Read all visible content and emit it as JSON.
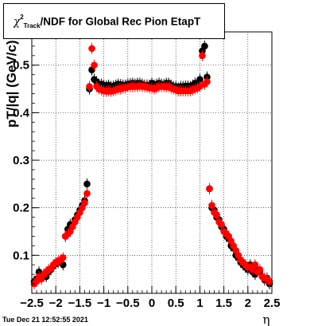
{
  "timestamp": "Tue Dec 21 12:52:55 2021",
  "chart_data": {
    "type": "scatter",
    "title": {
      "symbol": "χ",
      "sup": "2",
      "sub": "Track",
      "rest": "/NDF for Global Rec Pion EtapT"
    },
    "xlabel": "η",
    "ylabel": "pT/|q| (GeV/c)",
    "xlim": [
      -2.5,
      2.5
    ],
    "ylim": [
      0.02,
      0.57
    ],
    "x_ticks": [
      -2.5,
      -2,
      -1.5,
      -1,
      -0.5,
      0,
      0.5,
      1,
      1.5,
      2,
      2.5
    ],
    "x_tick_labels": [
      "−2.5",
      "−2",
      "−1.5",
      "−1",
      "−0.5",
      "0",
      "0.5",
      "1",
      "1.5",
      "2",
      "2.5"
    ],
    "y_ticks": [
      0.1,
      0.2,
      0.3,
      0.4,
      0.5
    ],
    "y_tick_labels": [
      "0.1",
      "0.2",
      "0.3",
      "0.4",
      "0.5"
    ],
    "grid": true,
    "series": [
      {
        "color": "#000000",
        "x": [
          -2.45,
          -2.4,
          -2.35,
          -2.3,
          -2.25,
          -2.2,
          -2.15,
          -2.1,
          -2.05,
          -2.0,
          -1.95,
          -1.9,
          -1.85,
          -1.8,
          -1.75,
          -1.7,
          -1.65,
          -1.6,
          -1.55,
          -1.5,
          -1.45,
          -1.4,
          -1.35,
          -1.3,
          -1.25,
          -1.2,
          -1.15,
          -1.1,
          -1.05,
          -1.0,
          -0.95,
          -0.9,
          -0.85,
          -0.8,
          -0.75,
          -0.7,
          -0.65,
          -0.6,
          -0.55,
          -0.5,
          -0.45,
          -0.4,
          -0.35,
          -0.3,
          -0.25,
          -0.2,
          -0.15,
          -0.1,
          -0.05,
          0.0,
          0.05,
          0.1,
          0.15,
          0.2,
          0.25,
          0.3,
          0.35,
          0.4,
          0.45,
          0.5,
          0.55,
          0.6,
          0.65,
          0.7,
          0.75,
          0.8,
          0.85,
          0.9,
          0.95,
          1.0,
          1.05,
          1.1,
          1.15,
          1.2,
          1.25,
          1.3,
          1.35,
          1.4,
          1.45,
          1.5,
          1.55,
          1.6,
          1.65,
          1.7,
          1.75,
          1.8,
          1.85,
          1.9,
          1.95,
          2.0,
          2.05,
          2.1,
          2.15,
          2.2,
          2.25,
          2.3,
          2.35,
          2.4,
          2.45
        ],
        "y": [
          0.045,
          0.05,
          0.065,
          0.058,
          0.06,
          0.055,
          0.065,
          0.07,
          0.078,
          0.082,
          0.085,
          0.09,
          0.08,
          0.14,
          0.155,
          0.165,
          0.16,
          0.175,
          0.185,
          0.195,
          0.205,
          0.215,
          0.25,
          0.45,
          0.49,
          0.47,
          0.465,
          0.46,
          0.46,
          0.458,
          0.456,
          0.458,
          0.455,
          0.456,
          0.458,
          0.46,
          0.459,
          0.458,
          0.458,
          0.46,
          0.461,
          0.462,
          0.46,
          0.462,
          0.462,
          0.46,
          0.458,
          0.458,
          0.458,
          0.462,
          0.458,
          0.46,
          0.462,
          0.46,
          0.459,
          0.462,
          0.462,
          0.458,
          0.455,
          0.455,
          0.452,
          0.455,
          0.455,
          0.456,
          0.456,
          0.455,
          0.458,
          0.462,
          0.46,
          0.47,
          0.53,
          0.54,
          0.475,
          0.24,
          0.2,
          0.195,
          0.18,
          0.175,
          0.16,
          0.155,
          0.14,
          0.135,
          0.12,
          0.115,
          0.1,
          0.095,
          0.085,
          0.08,
          0.075,
          0.07,
          0.08,
          0.065,
          0.06,
          0.07,
          0.065,
          0.055,
          0.048,
          0.052,
          0.04
        ]
      },
      {
        "color": "#ff0000",
        "x": [
          -2.45,
          -2.4,
          -2.35,
          -2.3,
          -2.25,
          -2.2,
          -2.15,
          -2.1,
          -2.05,
          -2.0,
          -1.95,
          -1.9,
          -1.85,
          -1.8,
          -1.75,
          -1.7,
          -1.65,
          -1.6,
          -1.55,
          -1.5,
          -1.45,
          -1.4,
          -1.35,
          -1.3,
          -1.25,
          -1.2,
          -1.15,
          -1.1,
          -1.05,
          -1.0,
          -0.95,
          -0.9,
          -0.85,
          -0.8,
          -0.75,
          -0.7,
          -0.65,
          -0.6,
          -0.55,
          -0.5,
          -0.45,
          -0.4,
          -0.35,
          -0.3,
          -0.25,
          -0.2,
          -0.15,
          -0.1,
          -0.05,
          0.0,
          0.05,
          0.1,
          0.15,
          0.2,
          0.25,
          0.3,
          0.35,
          0.4,
          0.45,
          0.5,
          0.55,
          0.6,
          0.65,
          0.7,
          0.75,
          0.8,
          0.85,
          0.9,
          0.95,
          1.0,
          1.05,
          1.1,
          1.15,
          1.2,
          1.25,
          1.3,
          1.35,
          1.4,
          1.45,
          1.5,
          1.55,
          1.6,
          1.65,
          1.7,
          1.75,
          1.8,
          1.85,
          1.9,
          1.95,
          2.0,
          2.05,
          2.1,
          2.15,
          2.2,
          2.25,
          2.3,
          2.35,
          2.4,
          2.45
        ],
        "y": [
          0.04,
          0.045,
          0.055,
          0.05,
          0.06,
          0.065,
          0.07,
          0.072,
          0.08,
          0.085,
          0.088,
          0.09,
          0.095,
          0.14,
          0.145,
          0.15,
          0.16,
          0.17,
          0.18,
          0.19,
          0.2,
          0.21,
          0.23,
          0.455,
          0.535,
          0.5,
          0.455,
          0.45,
          0.448,
          0.446,
          0.445,
          0.446,
          0.445,
          0.446,
          0.448,
          0.45,
          0.45,
          0.452,
          0.452,
          0.454,
          0.455,
          0.455,
          0.455,
          0.455,
          0.456,
          0.455,
          0.455,
          0.454,
          0.452,
          0.452,
          0.45,
          0.452,
          0.455,
          0.455,
          0.455,
          0.454,
          0.455,
          0.452,
          0.45,
          0.448,
          0.446,
          0.446,
          0.446,
          0.446,
          0.446,
          0.446,
          0.448,
          0.45,
          0.452,
          0.455,
          0.52,
          0.46,
          0.465,
          0.24,
          0.205,
          0.19,
          0.185,
          0.17,
          0.165,
          0.15,
          0.145,
          0.14,
          0.13,
          0.12,
          0.11,
          0.1,
          0.09,
          0.085,
          0.08,
          0.075,
          0.075,
          0.07,
          0.08,
          0.065,
          0.07,
          0.055,
          0.052,
          0.05,
          0.045
        ]
      }
    ]
  }
}
